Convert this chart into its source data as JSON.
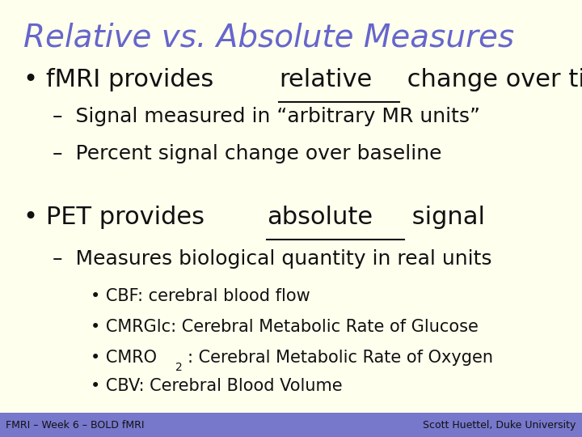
{
  "title": "Relative vs. Absolute Measures",
  "title_color": "#6666cc",
  "background_color": "#ffffee",
  "footer_bg_color": "#7777cc",
  "footer_left": "FMRI – Week 6 – BOLD fMRI",
  "footer_right": "Scott Huettel, Duke University",
  "footer_text_color": "#111111",
  "footer_fontsize": 9,
  "title_fontsize": 28,
  "text_color": "#111111",
  "bullet1_fontsize": 22,
  "bullet2_fontsize": 18,
  "bullet3_fontsize": 15
}
